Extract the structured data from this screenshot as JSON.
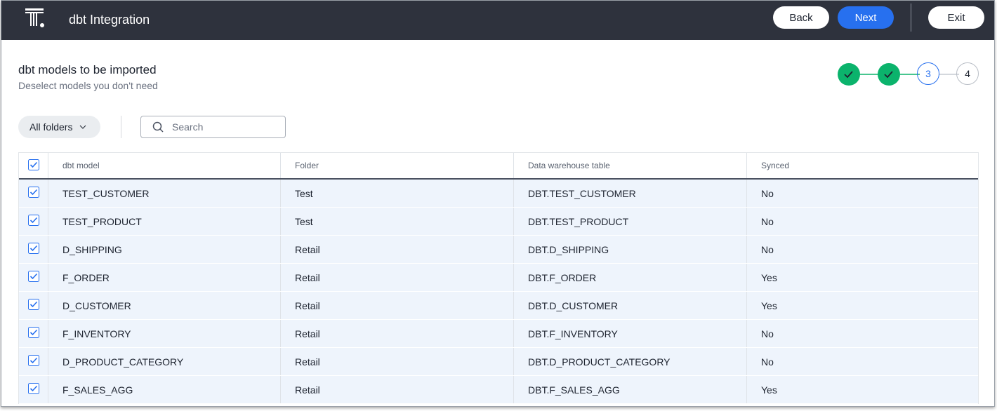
{
  "header": {
    "title": "dbt Integration",
    "buttons": [
      "Back",
      "Next",
      "Exit"
    ]
  },
  "section": {
    "title": "dbt models to be imported",
    "subtitle": "Deselect models you don't need"
  },
  "stepper": {
    "steps": [
      "3",
      "4"
    ]
  },
  "filters": {
    "folder": "All folders",
    "search_placeholder": "Search"
  },
  "table": {
    "columns": [
      "dbt model",
      "Folder",
      "Data warehouse table",
      "Synced"
    ],
    "rows": [
      [
        "TEST_CUSTOMER",
        "Test",
        "DBT.TEST_CUSTOMER",
        "No"
      ],
      [
        "TEST_PRODUCT",
        "Test",
        "DBT.TEST_PRODUCT",
        "No"
      ],
      [
        "D_SHIPPING",
        "Retail",
        "DBT.D_SHIPPING",
        "No"
      ],
      [
        "F_ORDER",
        "Retail",
        "DBT.F_ORDER",
        "Yes"
      ],
      [
        "D_CUSTOMER",
        "Retail",
        "DBT.D_CUSTOMER",
        "Yes"
      ],
      [
        "F_INVENTORY",
        "Retail",
        "DBT.F_INVENTORY",
        "No"
      ],
      [
        "D_PRODUCT_CATEGORY",
        "Retail",
        "DBT.D_PRODUCT_CATEGORY",
        "No"
      ],
      [
        "F_SALES_AGG",
        "Retail",
        "DBT.F_SALES_AGG",
        "Yes"
      ]
    ]
  }
}
